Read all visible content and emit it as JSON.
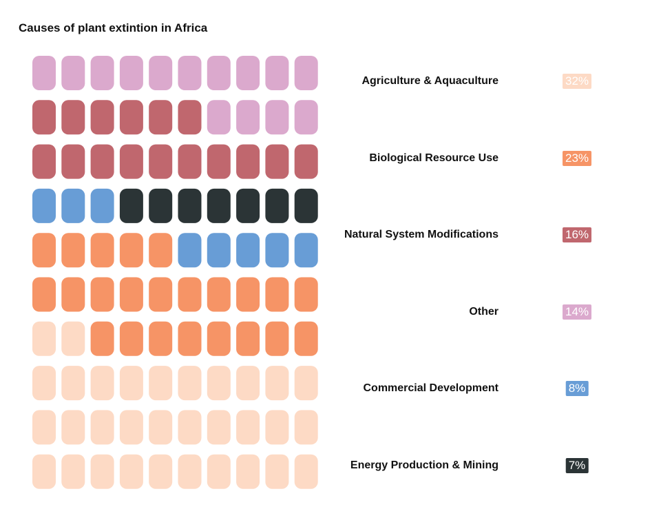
{
  "title": "Causes of plant extintion in Africa",
  "chart_data": {
    "type": "waffle",
    "title": "Causes of plant extintion in Africa",
    "grid": {
      "rows": 10,
      "cols": 10
    },
    "total": 100,
    "series": [
      {
        "name": "Agriculture & Aquaculture",
        "value": 32,
        "label": "32%",
        "color": "#fddac5",
        "text_color": "#ffffff"
      },
      {
        "name": "Biological Resource Use",
        "value": 23,
        "label": "23%",
        "color": "#f69466",
        "text_color": "#ffffff"
      },
      {
        "name": "Commercial Development",
        "value": 8,
        "label": "8%",
        "color": "#689dd6",
        "text_color": "#ffffff"
      },
      {
        "name": "Energy Production & Mining",
        "value": 7,
        "label": "7%",
        "color": "#2b3436",
        "text_color": "#ffffff"
      },
      {
        "name": "Natural System Modifications",
        "value": 16,
        "label": "16%",
        "color": "#c0676e",
        "text_color": "#ffffff"
      },
      {
        "name": "Other",
        "value": 14,
        "label": "14%",
        "color": "#dba9cd",
        "text_color": "#ffffff"
      }
    ],
    "legend_order": [
      "Agriculture & Aquaculture",
      "Biological Resource Use",
      "Natural System Modifications",
      "Other",
      "Commercial Development",
      "Energy Production & Mining"
    ],
    "fill_order": "bottom-to-top, left-to-right"
  }
}
